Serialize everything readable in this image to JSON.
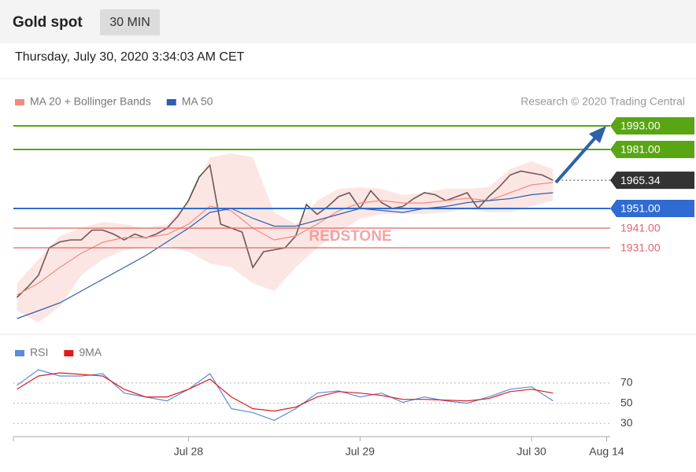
{
  "header": {
    "title": "Gold spot",
    "interval": "30 MIN",
    "timestamp": "Thursday, July 30, 2020 3:34:03 AM CET"
  },
  "chart_data": [
    {
      "type": "line",
      "credit": "Research © 2020 Trading Central",
      "watermark": "REDSTONE",
      "legend": "top-left",
      "xlim": [
        -1,
        166
      ],
      "ylim": [
        1889,
        1999
      ],
      "x": [
        0,
        3,
        6,
        9,
        12,
        15,
        18,
        21,
        24,
        27,
        30,
        33,
        36,
        39,
        42,
        45,
        48,
        51,
        54,
        57,
        60,
        63,
        66,
        69,
        72,
        75,
        78,
        81,
        84,
        87,
        90,
        93,
        96,
        99,
        102,
        105,
        108,
        111,
        114,
        117,
        120,
        123,
        126,
        129,
        132,
        135,
        138,
        141,
        144,
        147,
        150
      ],
      "series": [
        {
          "color": "#4a4a4a",
          "values": [
            1905.8,
            1911,
            1917,
            1931,
            1934,
            1935,
            1935,
            1940,
            1940,
            1938,
            1935,
            1938,
            1936,
            1938,
            1941,
            1947,
            1955,
            1967,
            1973,
            1943,
            1941,
            1939,
            1921,
            1929,
            1930,
            1931,
            1937,
            1953,
            1948,
            1952,
            1957,
            1959,
            1951,
            1960,
            1954,
            1951,
            1952,
            1956,
            1959,
            1958,
            1955,
            1957,
            1959,
            1951,
            1957,
            1962,
            1968,
            1970,
            1969,
            1968,
            1965.34
          ]
        },
        {
          "name": "MA 20 + Bollinger Bands",
          "color": "#f28b82",
          "x": [
            0,
            6,
            12,
            18,
            24,
            30,
            36,
            42,
            48,
            54,
            60,
            66,
            72,
            78,
            84,
            90,
            96,
            102,
            108,
            114,
            120,
            126,
            132,
            138,
            144,
            150
          ],
          "values": [
            1907,
            1913,
            1921,
            1928.2,
            1933.8,
            1936.2,
            1936.2,
            1937.8,
            1943,
            1952.2,
            1949.8,
            1941,
            1935,
            1937,
            1943,
            1949.8,
            1953.8,
            1955,
            1953.8,
            1953.8,
            1955,
            1956.2,
            1955,
            1959,
            1963,
            1964.2
          ],
          "upper": [
            1913,
            1925,
            1937,
            1941,
            1944.2,
            1943,
            1941,
            1943,
            1955,
            1977,
            1979,
            1977,
            1949,
            1943,
            1955,
            1961,
            1961.8,
            1961,
            1957.8,
            1959,
            1961,
            1961,
            1961.8,
            1971,
            1975,
            1971
          ],
          "lower": [
            1899,
            1893,
            1901,
            1917,
            1925,
            1929.8,
            1931,
            1932.2,
            1929,
            1923,
            1921,
            1913,
            1909,
            1921,
            1931,
            1939,
            1945.8,
            1948.2,
            1948.2,
            1948.2,
            1949,
            1951,
            1949,
            1949,
            1952.2,
            1955
          ]
        },
        {
          "name": "MA 50",
          "color": "#2f5fa8",
          "x": [
            0,
            6,
            12,
            18,
            24,
            30,
            36,
            42,
            48,
            54,
            60,
            66,
            72,
            78,
            84,
            90,
            96,
            102,
            108,
            114,
            120,
            126,
            132,
            138,
            144,
            150
          ],
          "values": [
            1895,
            1899,
            1903,
            1909,
            1915,
            1921,
            1927,
            1934,
            1941,
            1949,
            1951,
            1946,
            1942,
            1942,
            1945,
            1948,
            1951,
            1950,
            1949,
            1951,
            1952,
            1954,
            1955,
            1956,
            1958,
            1959
          ]
        }
      ],
      "levels": [
        {
          "value": 1993,
          "label": "1993.00",
          "color": "#5aa514",
          "boxed": true
        },
        {
          "value": 1981,
          "label": "1981.00",
          "color": "#5aa514",
          "boxed": true
        },
        {
          "value": 1965.34,
          "color": "#333333",
          "boxed": true,
          "dotted": true
        },
        {
          "value": 1951,
          "label": "1951.00",
          "color": "#2f6bd1",
          "boxed": true
        },
        {
          "value": 1941,
          "label": "1941.00",
          "color": "#e06666",
          "boxed": false
        },
        {
          "value": 1931,
          "label": "1931.00",
          "color": "#e06666",
          "boxed": false
        }
      ]
    },
    {
      "type": "line",
      "legend": "top-left",
      "grid": true,
      "xlim": [
        -1,
        166
      ],
      "ylim": [
        17,
        87
      ],
      "yticks": [
        70,
        50,
        30
      ],
      "xticks": [
        {
          "value": 48,
          "label": "Jul 28"
        },
        {
          "value": 96,
          "label": "Jul 29"
        },
        {
          "value": 144,
          "label": "Jul 30"
        },
        {
          "value": 165,
          "label": "Aug 14"
        }
      ],
      "x": [
        0,
        6,
        12,
        18,
        24,
        30,
        36,
        42,
        48,
        54,
        60,
        66,
        72,
        78,
        84,
        90,
        96,
        102,
        108,
        114,
        120,
        126,
        132,
        138,
        144,
        150
      ],
      "series": [
        {
          "name": "RSI",
          "color": "#5b8bd9",
          "values": [
            67.7,
            83.1,
            76.9,
            76.9,
            79.2,
            60,
            56.2,
            52.3,
            63.8,
            79.2,
            44.6,
            40.8,
            33.1,
            44.6,
            60,
            62.3,
            56.2,
            60,
            50.8,
            56.2,
            52.3,
            50,
            56.2,
            63.8,
            66.2,
            52.3
          ]
        },
        {
          "name": "9MA",
          "color": "#e01b1b",
          "values": [
            63.8,
            76.9,
            80,
            78.5,
            76.9,
            63.8,
            56.2,
            56.2,
            63.8,
            73.8,
            56.2,
            44.6,
            42.3,
            46.2,
            56.2,
            61.5,
            60,
            57.7,
            53.8,
            53.8,
            53.1,
            52.3,
            54.6,
            61.5,
            63.8,
            60
          ]
        }
      ]
    }
  ]
}
